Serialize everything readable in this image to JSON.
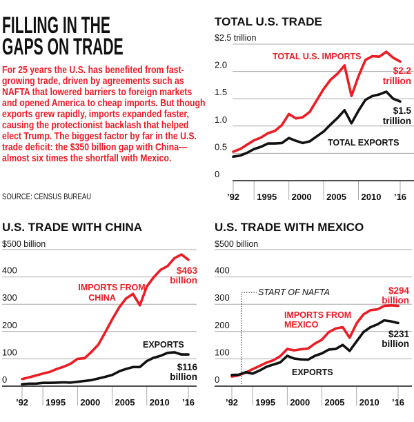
{
  "headline": [
    "FILLING IN THE",
    "GAPS ON TRADE"
  ],
  "dek": "For 25 years the U.S. has benefited from fast-growing trade, driven by agreements such as NAFTA that lowered barriers to foreign markets and opened America to cheap imports. But though exports grew rapidly, imports expanded faster, causing the protectionist backlash that helped elect Trump. The biggest factor by far in the U.S. trade deficit: the $350 billion gap with China—almost six times the shortfall with Mexico.",
  "source": "SOURCE: CENSUS BUREAU",
  "colors": {
    "imports": "#ec1c24",
    "exports": "#111111",
    "grid": "#a8a8a8"
  },
  "chart_data": [
    {
      "id": "total",
      "type": "line",
      "title": "TOTAL U.S. TRADE",
      "unit_label": "$2.5 trillion",
      "xlabel": "",
      "ylabel": "",
      "ylim": [
        0,
        2.5
      ],
      "yticks": [
        0,
        0.5,
        1.0,
        1.5,
        2.0,
        2.5
      ],
      "ytick_labels": [
        "0",
        "0.5",
        "1.0",
        "1.5",
        "2.0",
        ""
      ],
      "xlim": [
        1992,
        2016
      ],
      "xticks": [
        1992,
        1995,
        2000,
        2005,
        2010,
        2016
      ],
      "xtick_labels": [
        "’92",
        "1995",
        "2000",
        "2005",
        "2010",
        "’16"
      ],
      "grid": true,
      "x": [
        1992,
        1993,
        1994,
        1995,
        1996,
        1997,
        1998,
        1999,
        2000,
        2001,
        2002,
        2003,
        2004,
        2005,
        2006,
        2007,
        2008,
        2009,
        2010,
        2011,
        2012,
        2013,
        2014,
        2015,
        2016
      ],
      "series": [
        {
          "name": "TOTAL U.S. IMPORTS",
          "color": "#ec1c24",
          "end_label": [
            "$2.2",
            "trillion"
          ],
          "values": [
            0.53,
            0.58,
            0.66,
            0.74,
            0.79,
            0.87,
            0.91,
            1.02,
            1.22,
            1.14,
            1.16,
            1.26,
            1.47,
            1.68,
            1.85,
            1.96,
            2.11,
            1.55,
            1.91,
            2.21,
            2.28,
            2.27,
            2.36,
            2.25,
            2.18
          ]
        },
        {
          "name": "TOTAL EXPORTS",
          "color": "#111111",
          "end_label": [
            "$1.5",
            "trillion"
          ],
          "values": [
            0.44,
            0.46,
            0.51,
            0.58,
            0.62,
            0.68,
            0.68,
            0.69,
            0.78,
            0.73,
            0.69,
            0.72,
            0.81,
            0.9,
            1.03,
            1.15,
            1.29,
            1.05,
            1.28,
            1.48,
            1.55,
            1.58,
            1.63,
            1.5,
            1.45
          ]
        }
      ]
    },
    {
      "id": "china",
      "type": "line",
      "title": "U.S. TRADE WITH CHINA",
      "unit_label": "$500 billion",
      "xlabel": "",
      "ylabel": "",
      "ylim": [
        0,
        500
      ],
      "yticks": [
        0,
        100,
        200,
        300,
        400,
        500
      ],
      "ytick_labels": [
        "0",
        "100",
        "200",
        "300",
        "400",
        ""
      ],
      "xlim": [
        1992,
        2016
      ],
      "xticks": [
        1992,
        1995,
        2000,
        2005,
        2010,
        2016
      ],
      "xtick_labels": [
        "’92",
        "1995",
        "2000",
        "2005",
        "2010",
        "’16"
      ],
      "grid": true,
      "x": [
        1992,
        1993,
        1994,
        1995,
        1996,
        1997,
        1998,
        1999,
        2000,
        2001,
        2002,
        2003,
        2004,
        2005,
        2006,
        2007,
        2008,
        2009,
        2010,
        2011,
        2012,
        2013,
        2014,
        2015,
        2016
      ],
      "series": [
        {
          "name": "IMPORTS FROM CHINA",
          "label_lines": [
            "IMPORTS FROM",
            "CHINA"
          ],
          "color": "#ec1c24",
          "end_label": [
            "$463",
            "billion"
          ],
          "values": [
            26,
            32,
            39,
            46,
            52,
            63,
            71,
            82,
            100,
            102,
            125,
            152,
            197,
            244,
            288,
            321,
            338,
            296,
            365,
            399,
            426,
            440,
            469,
            482,
            463
          ]
        },
        {
          "name": "EXPORTS",
          "label_lines": [
            "EXPORTS"
          ],
          "color": "#111111",
          "end_label": [
            "$116",
            "billion"
          ],
          "values": [
            7,
            9,
            9,
            12,
            12,
            13,
            14,
            13,
            16,
            19,
            22,
            28,
            34,
            41,
            54,
            63,
            70,
            70,
            92,
            104,
            111,
            122,
            124,
            116,
            116
          ]
        }
      ]
    },
    {
      "id": "mexico",
      "type": "line",
      "title": "U.S. TRADE WITH MEXICO",
      "unit_label": "$500 billion",
      "xlabel": "",
      "ylabel": "",
      "ylim": [
        0,
        500
      ],
      "yticks": [
        0,
        100,
        200,
        300,
        400,
        500
      ],
      "ytick_labels": [
        "0",
        "100",
        "200",
        "300",
        "400",
        ""
      ],
      "xlim": [
        1992,
        2016
      ],
      "xticks": [
        1992,
        1995,
        2000,
        2005,
        2010,
        2016
      ],
      "xtick_labels": [
        "’92",
        "1995",
        "2000",
        "2005",
        "2010",
        "’16"
      ],
      "grid": true,
      "annotation": {
        "text": "START OF NAFTA",
        "x": 1994
      },
      "x": [
        1992,
        1993,
        1994,
        1995,
        1996,
        1997,
        1998,
        1999,
        2000,
        2001,
        2002,
        2003,
        2004,
        2005,
        2006,
        2007,
        2008,
        2009,
        2010,
        2011,
        2012,
        2013,
        2014,
        2015,
        2016
      ],
      "series": [
        {
          "name": "IMPORTS FROM MEXICO",
          "label_lines": [
            "IMPORTS FROM",
            "MEXICO"
          ],
          "color": "#ec1c24",
          "end_label": [
            "$294",
            "billion"
          ],
          "values": [
            35,
            40,
            50,
            62,
            74,
            86,
            95,
            110,
            136,
            131,
            135,
            138,
            156,
            170,
            198,
            211,
            216,
            177,
            230,
            263,
            278,
            281,
            294,
            296,
            294
          ]
        },
        {
          "name": "EXPORTS",
          "label_lines": [
            "EXPORTS"
          ],
          "color": "#111111",
          "end_label": [
            "$231",
            "billion"
          ],
          "values": [
            41,
            42,
            51,
            46,
            57,
            71,
            79,
            87,
            111,
            101,
            98,
            97,
            111,
            120,
            134,
            136,
            151,
            129,
            164,
            198,
            216,
            226,
            241,
            237,
            231
          ]
        }
      ]
    }
  ]
}
